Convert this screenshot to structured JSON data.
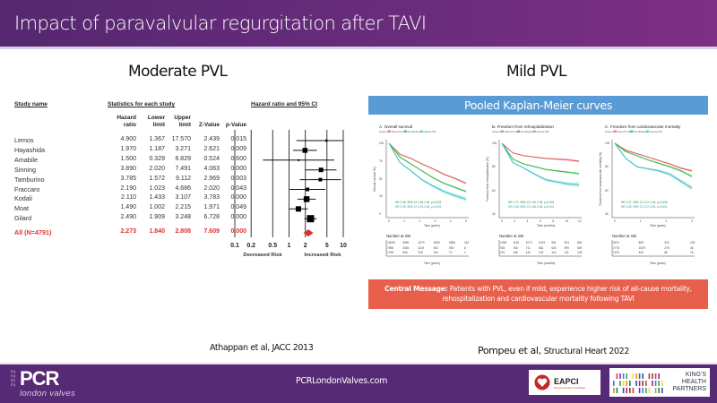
{
  "header": {
    "title": "Impact of paravalvular regurgitation after TAVI"
  },
  "left": {
    "section_title": "Moderate PVL",
    "reference": "Athappan et al, JACC 2013",
    "table": {
      "study_name_header": "Study name",
      "stats_header": "Statistics for each study",
      "plot_header": "Hazard ratio and 95% CI",
      "columns": [
        {
          "line1": "Hazard",
          "line2": "ratio"
        },
        {
          "line1": "Lower",
          "line2": "limit"
        },
        {
          "line1": "Upper",
          "line2": "limit"
        },
        {
          "line1": "",
          "line2": "Z-Value"
        },
        {
          "line1": "",
          "line2": "p-Value"
        }
      ],
      "rows": [
        {
          "study": "Lemos",
          "hr": "4.900",
          "lower": "1.367",
          "upper": "17.570",
          "z": "2.439",
          "p": "0.015"
        },
        {
          "study": "Hayashida",
          "hr": "1.970",
          "lower": "1.187",
          "upper": "3.271",
          "z": "2.621",
          "p": "0.009"
        },
        {
          "study": "Amabile",
          "hr": "1.500",
          "lower": "0.329",
          "upper": "6.829",
          "z": "0.524",
          "p": "0.600"
        },
        {
          "study": "Sinning",
          "hr": "3.890",
          "lower": "2.020",
          "upper": "7.491",
          "z": "4.063",
          "p": "0.000"
        },
        {
          "study": "Tamburino",
          "hr": "3.785",
          "lower": "1.572",
          "upper": "9.112",
          "z": "2.969",
          "p": "0.003"
        },
        {
          "study": "Fraccaro",
          "hr": "2.190",
          "lower": "1.023",
          "upper": "4.686",
          "z": "2.020",
          "p": "0.043"
        },
        {
          "study": "Kodali",
          "hr": "2.110",
          "lower": "1.433",
          "upper": "3.107",
          "z": "3.783",
          "p": "0.000"
        },
        {
          "study": "Moat",
          "hr": "1.490",
          "lower": "1.002",
          "upper": "2.215",
          "z": "1.971",
          "p": "0.049"
        },
        {
          "study": "Gilard",
          "hr": "2.490",
          "lower": "1.909",
          "upper": "3.248",
          "z": "6.728",
          "p": "0.000"
        }
      ],
      "total": {
        "study": "All (N=4791)",
        "hr": "2.273",
        "lower": "1.840",
        "upper": "2.808",
        "z": "7.609",
        "p": "0.000"
      }
    },
    "forest_axis": {
      "ticks": [
        "0.1",
        "0.2",
        "0.5",
        "1",
        "2",
        "5",
        "10"
      ],
      "left_label": "Decreased Risk",
      "right_label": "Increased Risk"
    }
  },
  "right": {
    "section_title": "Mild PVL",
    "banner": "Pooled Kaplan-Meier curves",
    "panels": [
      {
        "title": "A. Overall survival",
        "legend": "Group  No / Trace PVL   Mild PVL   Moderate / Severe PVL",
        "ylabel": "Overall survival (%)",
        "xlabel": "Time (years)",
        "xticks": [
          "0",
          "1",
          "2",
          "3",
          "4",
          "5"
        ],
        "yticks": [
          "100",
          "75",
          "50",
          "25",
          "0"
        ],
        "hr_lines": [
          "HR 1.36, 95% CI 1.28-1.45, p<0.001",
          "HR 2.30, 95% CI 2.09-2.52, p<0.001"
        ],
        "risk_title": "Number at risk",
        "risk_rows": [
          [
            "15053",
            "5990",
            "4279",
            "3333",
            "2696",
            "161"
          ],
          [
            "7696",
            "3354",
            "1119",
            "492",
            "393",
            "8"
          ],
          [
            "1796",
            "843",
            "226",
            "104",
            "72",
            "1"
          ]
        ]
      },
      {
        "title": "B. Freedom from rehospitalization",
        "legend": "Group  No / Trace PVL   Mild PVL   Moderate / Severe PVL",
        "ylabel": "Freedom from rehospitalization (%)",
        "xlabel": "Time (months)",
        "xticks": [
          "0",
          "2",
          "4",
          "6",
          "8",
          "10",
          "12"
        ],
        "yticks": [
          "100",
          "80",
          "60",
          "40"
        ],
        "hr_lines": [
          "HR 1.71, 95% CI 1.30-2.09, p<0.001",
          "HR 2.53, 95% CI 1.89-3.38, p<0.001"
        ],
        "risk_title": "Number at risk",
        "risk_rows": [
          [
            "1258",
            "1149",
            "1072",
            "1019",
            "961",
            "924",
            "830"
          ],
          [
            "925",
            "765",
            "711",
            "661",
            "630",
            "599",
            "529"
          ],
          [
            "221",
            "166",
            "143",
            "122",
            "116",
            "111",
            "103"
          ]
        ]
      },
      {
        "title": "C. Freedom from cardiovascular mortality",
        "legend": "Group  No / Trace PVL   Mild PVL   Moderate / Severe PVL",
        "ylabel": "Freedom from cardiovascular mortality (%)",
        "xlabel": "Time (years)",
        "xticks": [
          "0",
          "1",
          "2",
          "3"
        ],
        "yticks": [
          "100",
          "80",
          "60",
          "40"
        ],
        "hr_lines": [
          "HR 1.27, 95% CI 1.07-1.49, p=0.005",
          "HR 2.52, 95% CI 2.07-3.05, p<0.001"
        ],
        "risk_title": "Number at risk",
        "risk_rows": [
          [
            "5971",
            "849",
            "222",
            "105"
          ],
          [
            "2776",
            "1029",
            "275",
            "46"
          ],
          [
            "1103",
            "432",
            "86",
            "15"
          ]
        ]
      }
    ],
    "central_message_label": "Central Message:",
    "central_message_text": " Patients with PVL, even if mild, experience higher risk of all-cause mortality, rehospitalization and cardiovascular mortality following TAVI",
    "reference_authors": "Pompeu et al,",
    "reference_journal": "Structural Heart 2022"
  },
  "colors": {
    "header_purple": "#55286f",
    "banner_blue": "#5b9bd5",
    "central_red": "#e8604c",
    "forest_total_red": "#e03030",
    "km_none": "#e06060",
    "km_mild": "#3cb94a",
    "km_moderate": "#3ec3c8"
  },
  "footer": {
    "year": "2022",
    "logo": "PCR",
    "logo_sub": "london valves",
    "url": "PCRLondonValves.com",
    "eapci": "EAPCI",
    "eapci_sub": "European Society of Cardiology",
    "khp_line1": "KING'S",
    "khp_line2": "HEALTH",
    "khp_line3": "PARTNERS"
  }
}
